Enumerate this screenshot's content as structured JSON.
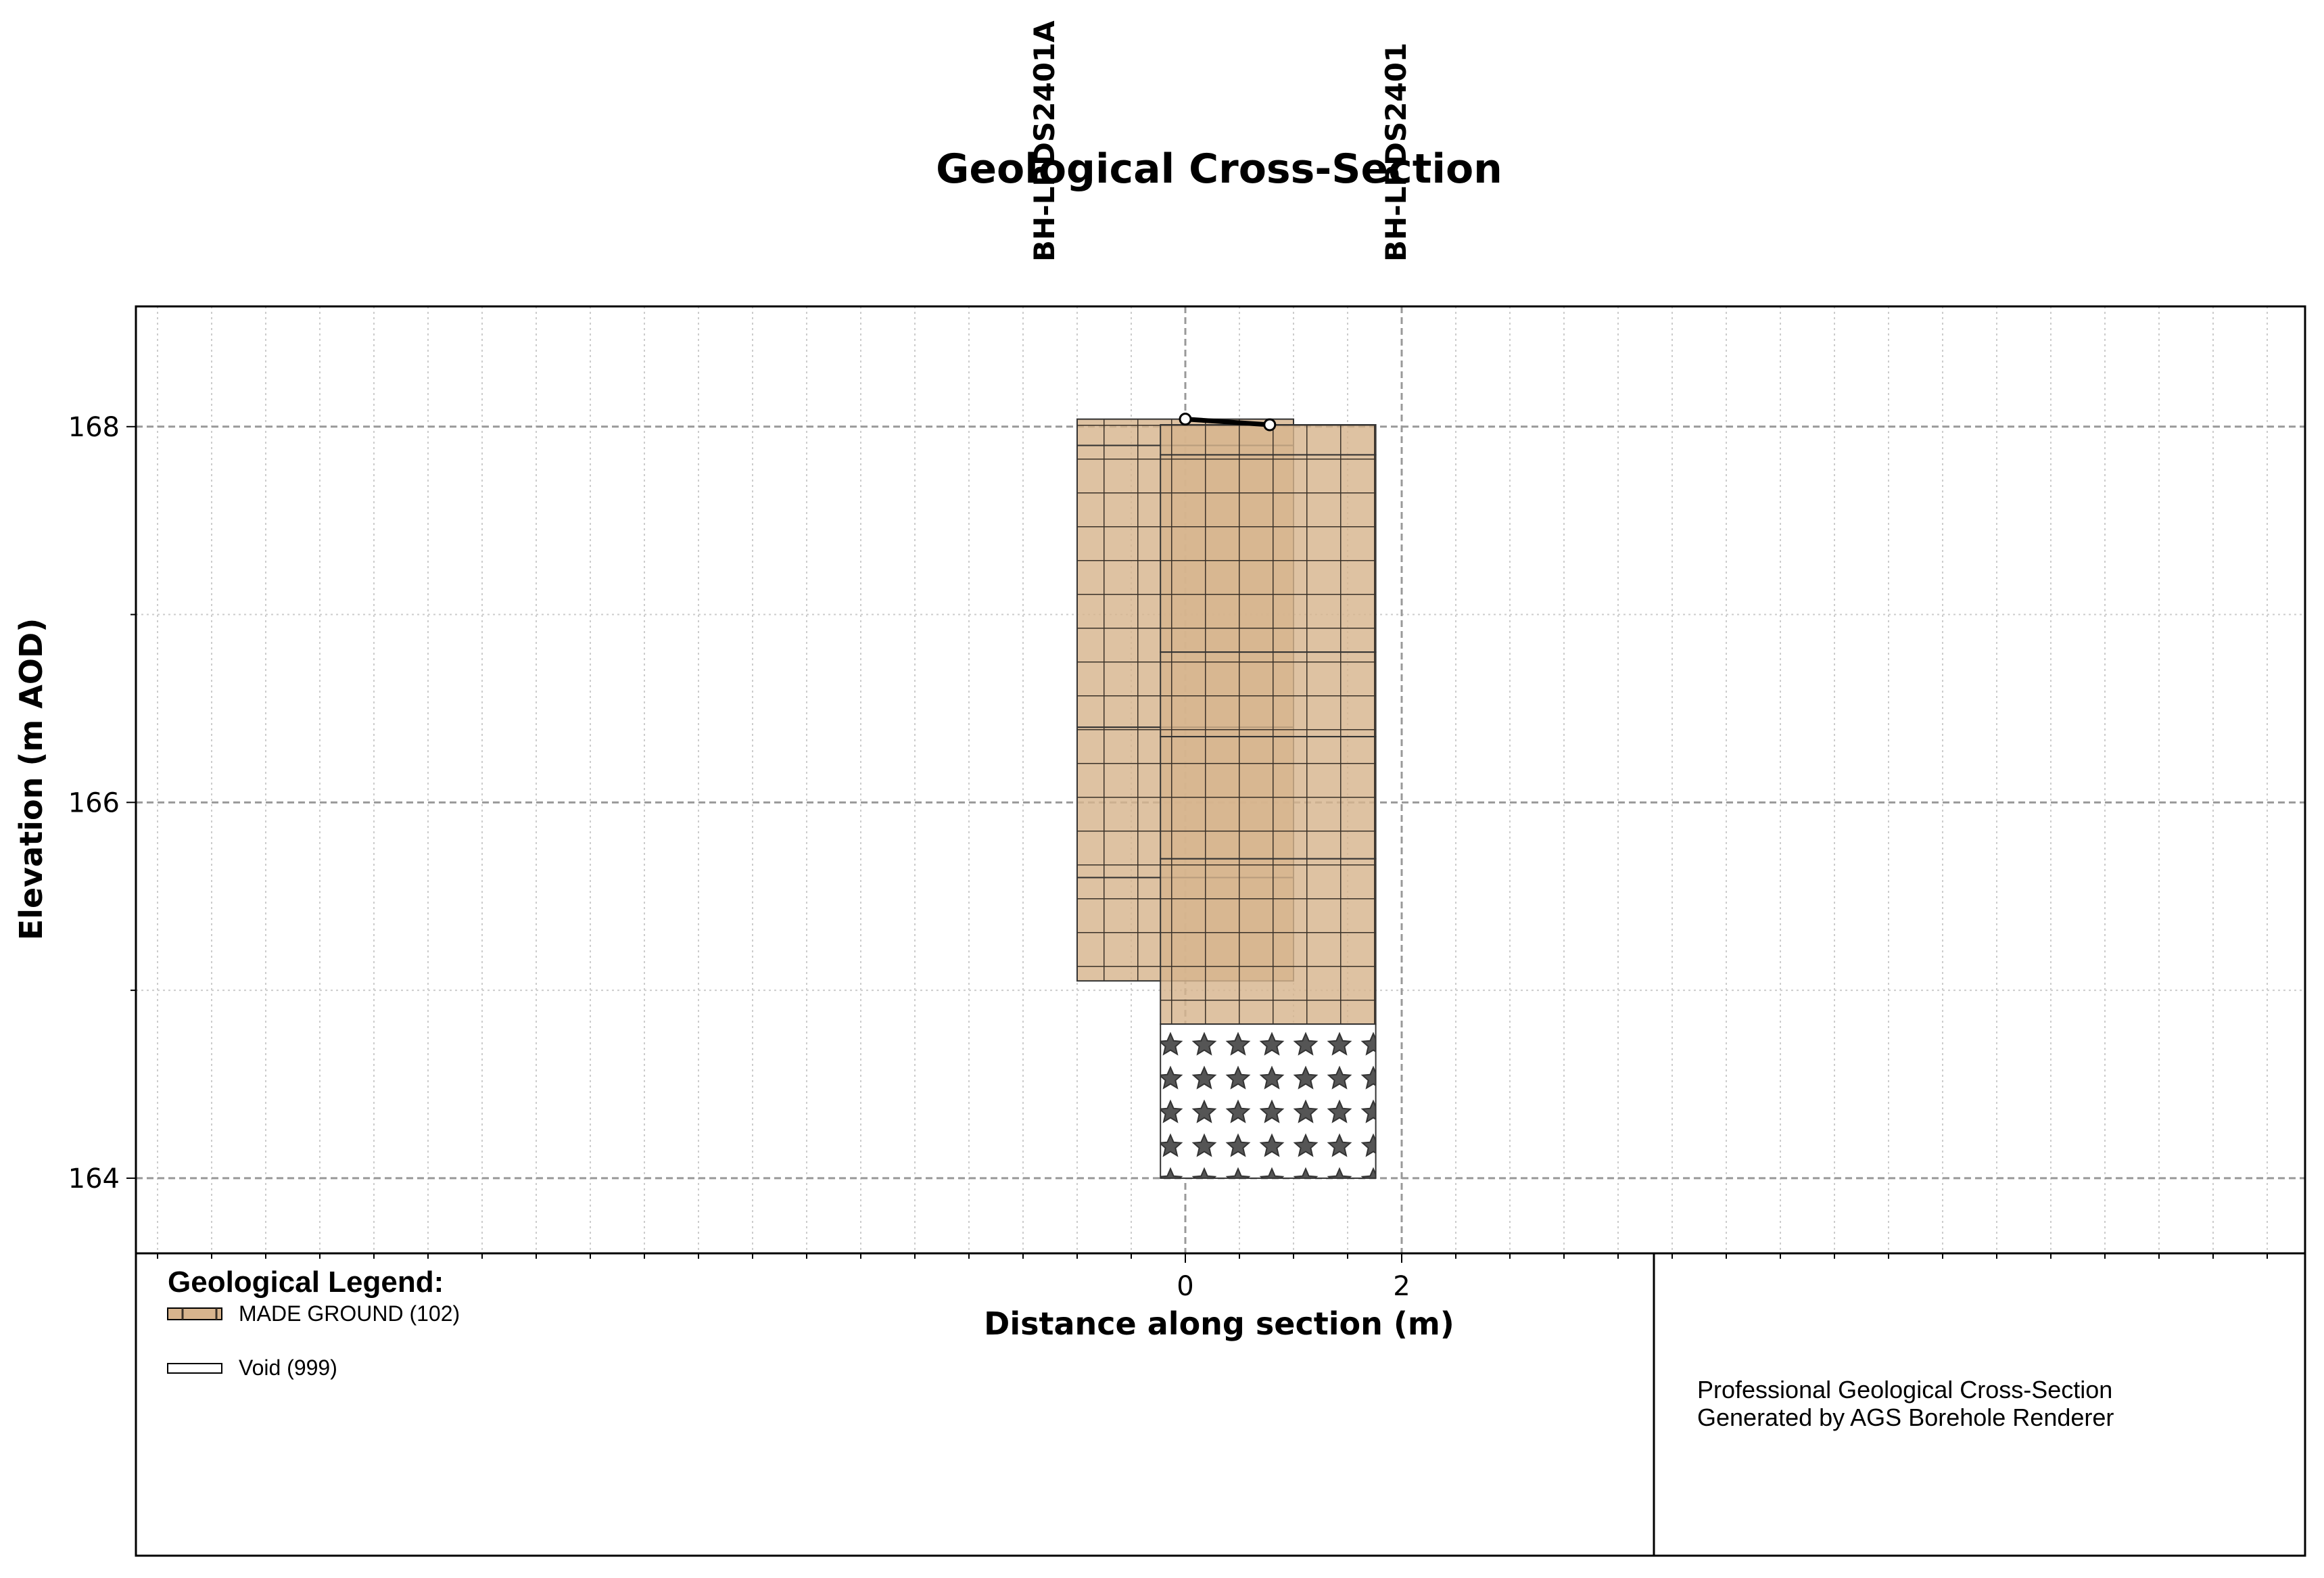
{
  "chart_data": {
    "type": "cross-section",
    "title": "Geological Cross-Section",
    "xlabel": "Distance along section (m)",
    "ylabel": "Elevation (m AOD)",
    "x_ticks": [
      0,
      2
    ],
    "y_ticks": [
      164,
      166,
      168
    ],
    "xlim": [
      -9.7,
      10.35
    ],
    "ylim": [
      163.6,
      168.64
    ],
    "grid": true,
    "boreholes": [
      {
        "name": "BH-LPDS2401A",
        "x": -1.0,
        "ground_level": 168.04,
        "layers": [
          {
            "code": "102",
            "top": 168.04,
            "bottom": 167.9
          },
          {
            "code": "102",
            "top": 167.9,
            "bottom": 166.4
          },
          {
            "code": "102",
            "top": 166.4,
            "bottom": 165.6
          },
          {
            "code": "102",
            "top": 165.6,
            "bottom": 165.05
          }
        ]
      },
      {
        "name": "BH-LPDS2401",
        "x": 2.0,
        "ground_level": 168.01,
        "layers": [
          {
            "code": "102",
            "top": 168.01,
            "bottom": 167.85
          },
          {
            "code": "102",
            "top": 167.85,
            "bottom": 166.8
          },
          {
            "code": "102",
            "top": 166.8,
            "bottom": 166.35
          },
          {
            "code": "102",
            "top": 166.35,
            "bottom": 165.7
          },
          {
            "code": "102",
            "top": 165.7,
            "bottom": 164.82
          },
          {
            "code": "999",
            "top": 164.82,
            "bottom": 164.0
          }
        ]
      }
    ],
    "ground_line": [
      {
        "x": 0.0,
        "y": 168.04
      },
      {
        "x": 0.78,
        "y": 168.01
      }
    ],
    "legend_title": "Geological Legend:",
    "legend": [
      {
        "code": "102",
        "label": "MADE GROUND (102)",
        "color": "#D7B48D"
      },
      {
        "code": "999",
        "label": "Void (999)",
        "color": "#FFFFFF"
      }
    ],
    "notes": [
      "Professional Geological Cross-Section",
      "Generated by AGS Borehole Renderer"
    ]
  }
}
